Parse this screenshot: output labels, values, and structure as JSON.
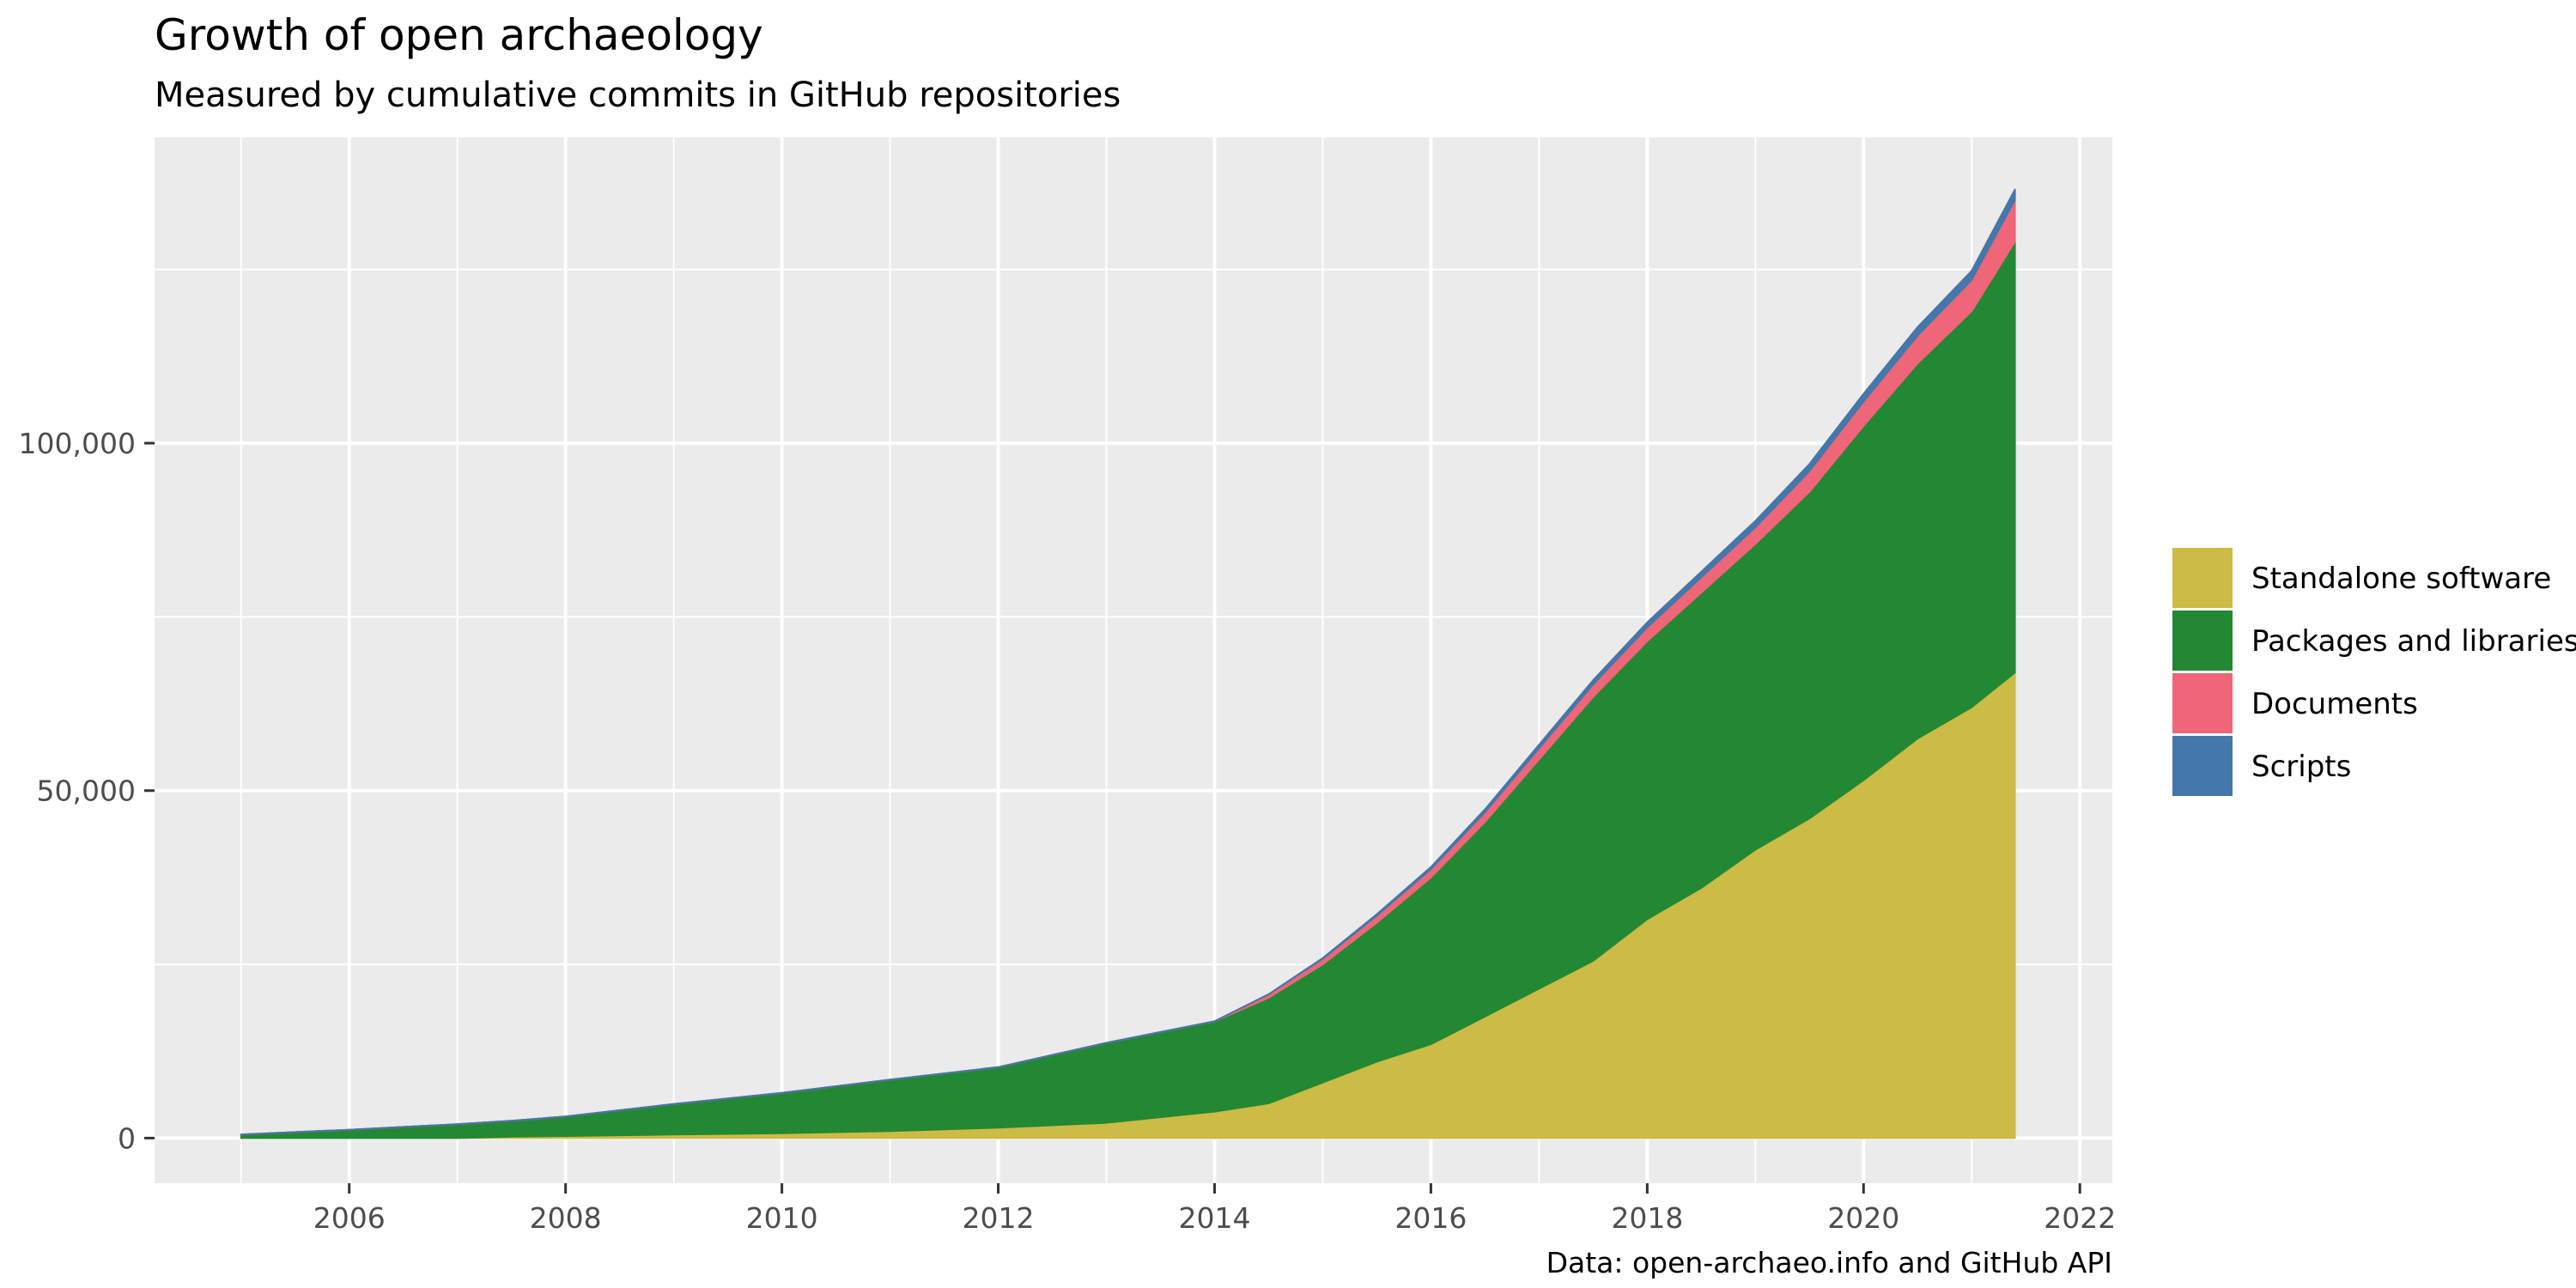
{
  "chart_data": {
    "type": "area",
    "stacked": true,
    "title": "Growth of open archaeology",
    "subtitle": "Measured by cumulative commits in GitHub repositories",
    "caption": "Data: open-archaeo.info and GitHub API",
    "xlabel": "",
    "ylabel": "",
    "xlim": [
      2004.2,
      2022.3
    ],
    "ylim": [
      -6500,
      144000
    ],
    "x_ticks": [
      2006,
      2008,
      2010,
      2012,
      2014,
      2016,
      2018,
      2020,
      2022
    ],
    "x_tick_labels": [
      "2006",
      "2008",
      "2010",
      "2012",
      "2014",
      "2016",
      "2018",
      "2020",
      "2022"
    ],
    "y_ticks": [
      0,
      50000,
      100000
    ],
    "y_tick_labels": [
      "0",
      "50,000",
      "100,000"
    ],
    "grid": true,
    "legend_position": "right",
    "x": [
      2005.0,
      2006.0,
      2007.0,
      2007.5,
      2008.0,
      2009.0,
      2010.0,
      2011.0,
      2012.0,
      2013.0,
      2014.0,
      2014.5,
      2015.0,
      2015.5,
      2016.0,
      2016.5,
      2017.0,
      2017.5,
      2018.0,
      2018.5,
      2019.0,
      2019.5,
      2020.0,
      2020.5,
      2021.0,
      2021.4
    ],
    "series": [
      {
        "name": "Standalone software",
        "color": "#CCBB44",
        "values": [
          0,
          0,
          0,
          200,
          300,
          500,
          700,
          1000,
          1500,
          2200,
          3800,
          5000,
          8000,
          11000,
          13500,
          17500,
          21500,
          25500,
          31500,
          36000,
          41500,
          46000,
          51500,
          57500,
          62000,
          67000
        ]
      },
      {
        "name": "Packages and libraries",
        "color": "#228833",
        "values": [
          500,
          1200,
          2000,
          2300,
          2800,
          4400,
          5800,
          7400,
          8700,
          11500,
          13000,
          15200,
          17000,
          20000,
          24000,
          28000,
          33000,
          38000,
          40000,
          42500,
          44000,
          47000,
          51000,
          54000,
          57000,
          62000
        ]
      },
      {
        "name": "Documents",
        "color": "#EE6677",
        "values": [
          0,
          0,
          0,
          0,
          0,
          0,
          0,
          0,
          0,
          0,
          0,
          500,
          800,
          1000,
          1200,
          1400,
          1600,
          1800,
          2000,
          2200,
          2400,
          3000,
          3500,
          4000,
          4500,
          6000
        ]
      },
      {
        "name": "Scripts",
        "color": "#4477AA",
        "values": [
          0,
          0,
          0,
          0,
          0,
          0,
          0,
          0,
          0,
          0,
          0,
          0,
          100,
          200,
          300,
          400,
          500,
          600,
          700,
          800,
          900,
          1000,
          1100,
          1200,
          1300,
          1500
        ]
      }
    ],
    "legend": [
      "Standalone software",
      "Packages and libraries",
      "Documents",
      "Scripts"
    ],
    "panel_color": "#EBEBEB",
    "grid_color": "#FFFFFF"
  }
}
